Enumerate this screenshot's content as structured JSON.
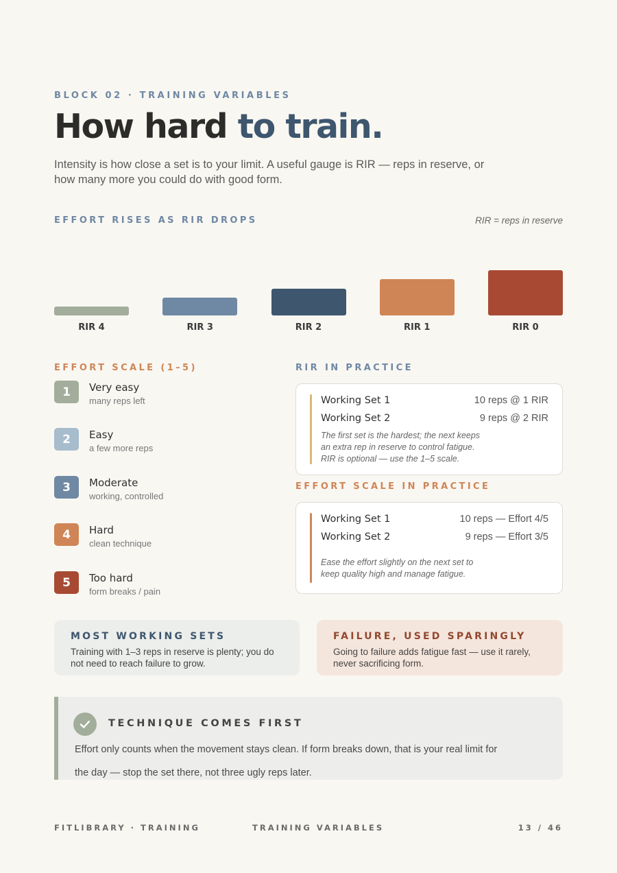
{
  "header": {
    "kicker": "BLOCK 02 · TRAINING VARIABLES",
    "title_part1": "How hard ",
    "title_part2": "to train.",
    "intro": "Intensity is how close a set is to your limit. A useful gauge is RIR — reps in reserve, or how many more you could do with good form."
  },
  "effort_chart": {
    "label": "EFFORT RISES AS RIR DROPS",
    "note": "RIR = reps in reserve",
    "bars": [
      {
        "label": "RIR 4",
        "level": 1,
        "color": "#a3ad9b"
      },
      {
        "label": "RIR 3",
        "level": 2,
        "color": "#6f88a4"
      },
      {
        "label": "RIR 2",
        "level": 3,
        "color": "#3e566e"
      },
      {
        "label": "RIR 1",
        "level": 4,
        "color": "#cf8556"
      },
      {
        "label": "RIR 0",
        "level": 5,
        "color": "#a84a33"
      }
    ]
  },
  "effort_scale": {
    "label": "EFFORT SCALE (1–5)",
    "items": [
      {
        "num": "1",
        "name": "Very easy",
        "sub": "many reps left",
        "color": "#a3ad9b"
      },
      {
        "num": "2",
        "name": "Easy",
        "sub": "a few more reps",
        "color": "#a7bccd"
      },
      {
        "num": "3",
        "name": "Moderate",
        "sub": "working, controlled",
        "color": "#6f88a4"
      },
      {
        "num": "4",
        "name": "Hard",
        "sub": "clean technique",
        "color": "#cf8556"
      },
      {
        "num": "5",
        "name": "Too hard",
        "sub": "form breaks / pain",
        "color": "#a84a33"
      }
    ]
  },
  "rir_practice": {
    "label": "RIR IN PRACTICE",
    "rows": [
      {
        "name": "Working Set 1",
        "value": "10 reps @ 1 RIR"
      },
      {
        "name": "Working Set 2",
        "value": "9 reps @ 2 RIR"
      }
    ],
    "note": "The first set is the hardest; the next keeps an extra rep in reserve to control fatigue. RIR is optional — use the 1–5 scale."
  },
  "scale_practice": {
    "label": "EFFORT SCALE IN PRACTICE",
    "rows": [
      {
        "name": "Working Set 1",
        "value": "10 reps — Effort 4/5"
      },
      {
        "name": "Working Set 2",
        "value": "9 reps — Effort 3/5"
      }
    ],
    "note": "Ease the effort slightly on the next set to keep quality high and manage fatigue."
  },
  "callouts": {
    "working": {
      "title": "MOST WORKING SETS",
      "body": "Training with 1–3 reps in reserve is plenty; you do not need to reach failure to grow."
    },
    "failure": {
      "title": "FAILURE, USED SPARINGLY",
      "body": "Going to failure adds fatigue fast — use it rarely, never sacrificing form."
    }
  },
  "technique": {
    "title": "TECHNIQUE COMES FIRST",
    "body": "Effort only counts when the movement stays clean. If form breaks down, that is your real limit for the day — stop the set there, not three ugly reps later."
  },
  "footer": {
    "left": "FITLIBRARY · TRAINING",
    "center": "TRAINING VARIABLES",
    "page": "13 / 46"
  },
  "icons": {
    "technique": "check-icon"
  }
}
